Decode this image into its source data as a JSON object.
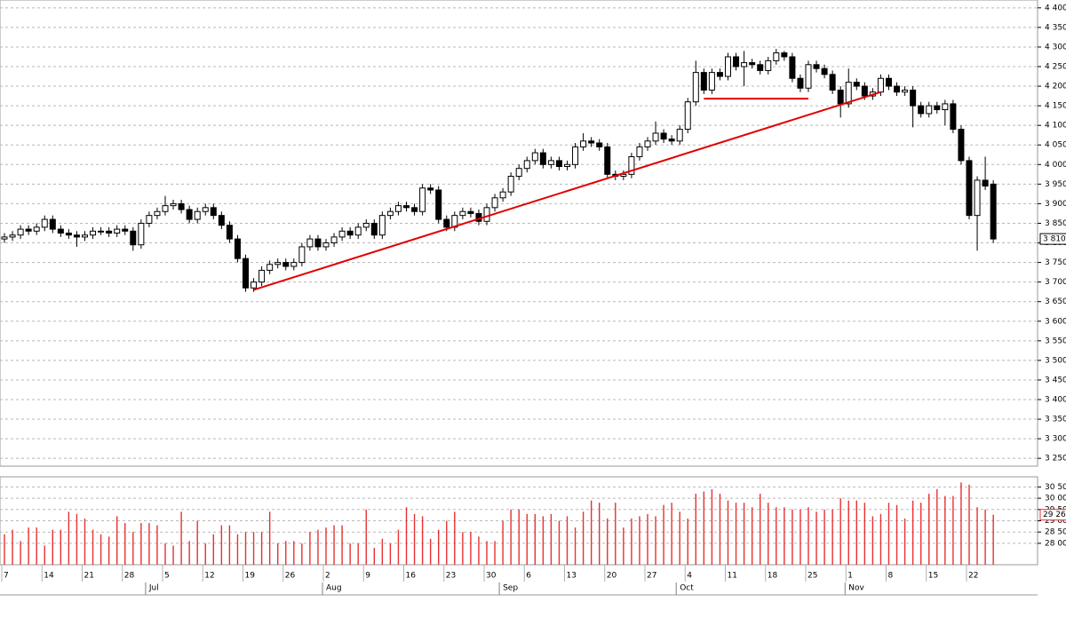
{
  "chart_data": [
    {
      "type": "candlestick",
      "categories": [
        "7",
        null,
        null,
        null,
        null,
        "14",
        null,
        null,
        null,
        null,
        "21",
        null,
        null,
        null,
        null,
        "28",
        null,
        null,
        null,
        null,
        "5",
        null,
        null,
        null,
        null,
        "12",
        null,
        null,
        null,
        null,
        "19",
        null,
        null,
        null,
        null,
        "26",
        null,
        null,
        null,
        null,
        "2",
        null,
        null,
        null,
        null,
        "9",
        null,
        null,
        null,
        null,
        "16",
        null,
        null,
        null,
        null,
        "23",
        null,
        null,
        null,
        null,
        "30",
        null,
        null,
        null,
        null,
        "6",
        null,
        null,
        null,
        null,
        "13",
        null,
        null,
        null,
        null,
        "20",
        null,
        null,
        null,
        null,
        "27",
        null,
        null,
        null,
        null,
        "4",
        null,
        null,
        null,
        null,
        "11",
        null,
        null,
        null,
        null,
        "18",
        null,
        null,
        null,
        null,
        "25",
        null,
        null,
        null,
        null,
        "1",
        null,
        null,
        null,
        null,
        "8",
        null,
        null,
        null,
        null,
        "15",
        null,
        null,
        null,
        null,
        "22",
        null,
        null,
        null
      ],
      "months": [
        {
          "label": "Jul",
          "start": 18
        },
        {
          "label": "Aug",
          "start": 40
        },
        {
          "label": "Sep",
          "start": 62
        },
        {
          "label": "Oct",
          "start": 84
        },
        {
          "label": "Nov",
          "start": 105
        }
      ],
      "open": [
        3810,
        3815,
        3820,
        3835,
        3830,
        3840,
        3860,
        3835,
        3825,
        3820,
        3815,
        3820,
        3830,
        3830,
        3825,
        3835,
        3830,
        3795,
        3850,
        3870,
        3880,
        3895,
        3900,
        3885,
        3860,
        3880,
        3890,
        3870,
        3845,
        3810,
        3760,
        3685,
        3700,
        3730,
        3745,
        3750,
        3740,
        3750,
        3790,
        3810,
        3790,
        3800,
        3815,
        3830,
        3820,
        3840,
        3850,
        3820,
        3870,
        3880,
        3895,
        3890,
        3880,
        3940,
        3935,
        3860,
        3840,
        3870,
        3880,
        3875,
        3855,
        3890,
        3915,
        3930,
        3970,
        3990,
        4010,
        4030,
        4000,
        4010,
        3995,
        4000,
        4045,
        4060,
        4055,
        4045,
        3975,
        3970,
        3975,
        4020,
        4045,
        4060,
        4080,
        4065,
        4060,
        4090,
        4160,
        4235,
        4190,
        4235,
        4225,
        4275,
        4250,
        4260,
        4255,
        4240,
        4265,
        4285,
        4275,
        4220,
        4195,
        4255,
        4245,
        4230,
        4190,
        4155,
        4210,
        4200,
        4175,
        4185,
        4220,
        4200,
        4185,
        4190,
        4150,
        4130,
        4150,
        4140,
        4155,
        4090,
        4010,
        3870,
        3960,
        3950
      ],
      "high": [
        3825,
        3830,
        3845,
        3845,
        3850,
        3870,
        3870,
        3845,
        3835,
        3830,
        3830,
        3840,
        3840,
        3840,
        3845,
        3845,
        3840,
        3860,
        3880,
        3890,
        3920,
        3910,
        3910,
        3895,
        3890,
        3900,
        3900,
        3880,
        3855,
        3820,
        3770,
        3710,
        3740,
        3755,
        3760,
        3760,
        3760,
        3800,
        3820,
        3820,
        3810,
        3825,
        3840,
        3840,
        3850,
        3860,
        3860,
        3880,
        3890,
        3905,
        3905,
        3900,
        3950,
        3950,
        3945,
        3870,
        3880,
        3890,
        3890,
        3885,
        3900,
        3925,
        3940,
        3980,
        4000,
        4020,
        4040,
        4040,
        4020,
        4020,
        4010,
        4055,
        4080,
        4070,
        4065,
        4055,
        3985,
        3985,
        4030,
        4055,
        4070,
        4110,
        4090,
        4075,
        4100,
        4170,
        4265,
        4245,
        4245,
        4245,
        4285,
        4285,
        4290,
        4270,
        4265,
        4275,
        4295,
        4290,
        4285,
        4230,
        4265,
        4265,
        4255,
        4240,
        4200,
        4245,
        4220,
        4210,
        4195,
        4230,
        4230,
        4210,
        4200,
        4200,
        4160,
        4160,
        4160,
        4165,
        4165,
        4100,
        4020,
        3970,
        4020,
        3960
      ],
      "low": [
        3800,
        3805,
        3810,
        3820,
        3820,
        3830,
        3825,
        3815,
        3810,
        3790,
        3805,
        3810,
        3820,
        3815,
        3815,
        3820,
        3780,
        3785,
        3840,
        3860,
        3870,
        3885,
        3875,
        3850,
        3850,
        3870,
        3860,
        3835,
        3800,
        3750,
        3675,
        3675,
        3690,
        3720,
        3735,
        3730,
        3730,
        3740,
        3780,
        3780,
        3780,
        3790,
        3805,
        3810,
        3810,
        3830,
        3810,
        3810,
        3860,
        3870,
        3880,
        3870,
        3870,
        3925,
        3850,
        3830,
        3830,
        3860,
        3865,
        3845,
        3845,
        3880,
        3905,
        3920,
        3960,
        3980,
        4000,
        3990,
        3990,
        3985,
        3985,
        3990,
        4035,
        4045,
        4035,
        3965,
        3960,
        3960,
        3965,
        4010,
        4035,
        4050,
        4055,
        4050,
        4050,
        4080,
        4150,
        4180,
        4180,
        4215,
        4215,
        4240,
        4200,
        4245,
        4230,
        4230,
        4255,
        4265,
        4210,
        4185,
        4185,
        4235,
        4220,
        4180,
        4120,
        4145,
        4190,
        4165,
        4165,
        4175,
        4190,
        4175,
        4175,
        4095,
        4120,
        4120,
        4130,
        4100,
        4080,
        4000,
        3860,
        3780,
        3935,
        3800
      ],
      "close": [
        3815,
        3820,
        3835,
        3830,
        3840,
        3860,
        3835,
        3825,
        3820,
        3815,
        3820,
        3830,
        3830,
        3825,
        3835,
        3830,
        3795,
        3850,
        3870,
        3880,
        3895,
        3900,
        3885,
        3860,
        3880,
        3890,
        3870,
        3845,
        3810,
        3760,
        3685,
        3700,
        3730,
        3745,
        3750,
        3740,
        3750,
        3790,
        3810,
        3790,
        3800,
        3815,
        3830,
        3820,
        3840,
        3850,
        3820,
        3870,
        3880,
        3895,
        3890,
        3880,
        3940,
        3935,
        3860,
        3840,
        3870,
        3880,
        3875,
        3855,
        3890,
        3915,
        3930,
        3970,
        3990,
        4010,
        4030,
        4000,
        4010,
        3995,
        4000,
        4045,
        4060,
        4055,
        4045,
        3975,
        3970,
        3975,
        4020,
        4045,
        4060,
        4080,
        4065,
        4060,
        4090,
        4160,
        4235,
        4190,
        4235,
        4225,
        4275,
        4250,
        4260,
        4255,
        4240,
        4265,
        4285,
        4275,
        4220,
        4195,
        4255,
        4245,
        4230,
        4190,
        4155,
        4210,
        4200,
        4175,
        4185,
        4220,
        4200,
        4185,
        4190,
        4150,
        4130,
        4150,
        4140,
        4155,
        4090,
        4010,
        3870,
        3960,
        3945,
        3810
      ],
      "up_color": "#ffffff",
      "down_color": "#000000",
      "lines": [
        {
          "x": [
            31,
            109
          ],
          "y": [
            3680,
            4185
          ],
          "color": "#e00000"
        },
        {
          "x": [
            87,
            100
          ],
          "y": [
            4168,
            4168
          ],
          "color": "#e00000"
        }
      ],
      "last_label": {
        "value": 3810,
        "label": "3 810"
      },
      "ylim": [
        3230,
        4420
      ],
      "yticks": [
        {
          "value": 4400,
          "label": "4 400"
        },
        {
          "value": 4350,
          "label": "4 350"
        },
        {
          "value": 4300,
          "label": "4 300"
        },
        {
          "value": 4250,
          "label": "4 250"
        },
        {
          "value": 4200,
          "label": "4 200"
        },
        {
          "value": 4150,
          "label": "4 150"
        },
        {
          "value": 4100,
          "label": "4 100"
        },
        {
          "value": 4050,
          "label": "4 050"
        },
        {
          "value": 4000,
          "label": "4 000"
        },
        {
          "value": 3950,
          "label": "3 950"
        },
        {
          "value": 3900,
          "label": "3 900"
        },
        {
          "value": 3850,
          "label": "3 850"
        },
        {
          "value": 3800,
          "label": "3 800"
        },
        {
          "value": 3750,
          "label": "3 750"
        },
        {
          "value": 3700,
          "label": "3 700"
        },
        {
          "value": 3650,
          "label": "3 650"
        },
        {
          "value": 3600,
          "label": "3 600"
        },
        {
          "value": 3550,
          "label": "3 550"
        },
        {
          "value": 3500,
          "label": "3 500"
        },
        {
          "value": 3450,
          "label": "3 450"
        },
        {
          "value": 3400,
          "label": "3 400"
        },
        {
          "value": 3350,
          "label": "3 350"
        },
        {
          "value": 3300,
          "label": "3 300"
        },
        {
          "value": 3250,
          "label": "3 250"
        }
      ],
      "grid": true
    },
    {
      "type": "bar",
      "color": "#e83030",
      "values": [
        28400,
        28600,
        28100,
        28700,
        28700,
        27900,
        28600,
        28600,
        29400,
        29300,
        29100,
        28600,
        28400,
        28300,
        29200,
        28900,
        28500,
        28900,
        28900,
        28800,
        28000,
        27900,
        29400,
        28100,
        29000,
        28000,
        28400,
        28800,
        28800,
        28400,
        28500,
        28500,
        28500,
        29400,
        28000,
        28100,
        28100,
        28000,
        28500,
        28600,
        28700,
        28800,
        28800,
        28000,
        28000,
        29500,
        27800,
        28200,
        28000,
        28600,
        29600,
        29300,
        29200,
        28200,
        28600,
        29000,
        29400,
        28500,
        28500,
        28300,
        28100,
        28100,
        29000,
        29500,
        29500,
        29300,
        29300,
        29200,
        29300,
        29000,
        29200,
        28700,
        29400,
        29900,
        29800,
        29100,
        29800,
        28700,
        29100,
        29200,
        29300,
        29200,
        29700,
        29800,
        29400,
        29100,
        30200,
        30300,
        30400,
        30200,
        29900,
        29800,
        29800,
        29600,
        30200,
        29800,
        29600,
        29600,
        29500,
        29500,
        29600,
        29400,
        29500,
        29500,
        30000,
        29900,
        29900,
        29800,
        29200,
        29300,
        29800,
        29700,
        29100,
        29900,
        29800,
        30200,
        30400,
        30100,
        30100,
        30700,
        30600,
        29600,
        29500,
        29269
      ],
      "last_label": {
        "value": 29269,
        "label": "29 269"
      },
      "ylim": [
        27050,
        30950
      ],
      "yticks": [
        {
          "value": 30500,
          "label": "30 500"
        },
        {
          "value": 30000,
          "label": "30 000"
        },
        {
          "value": 29500,
          "label": "29 500"
        },
        {
          "value": 29000,
          "label": "29 000"
        },
        {
          "value": 28500,
          "label": "28 500"
        },
        {
          "value": 28000,
          "label": "28 000"
        }
      ],
      "grid": true
    }
  ]
}
